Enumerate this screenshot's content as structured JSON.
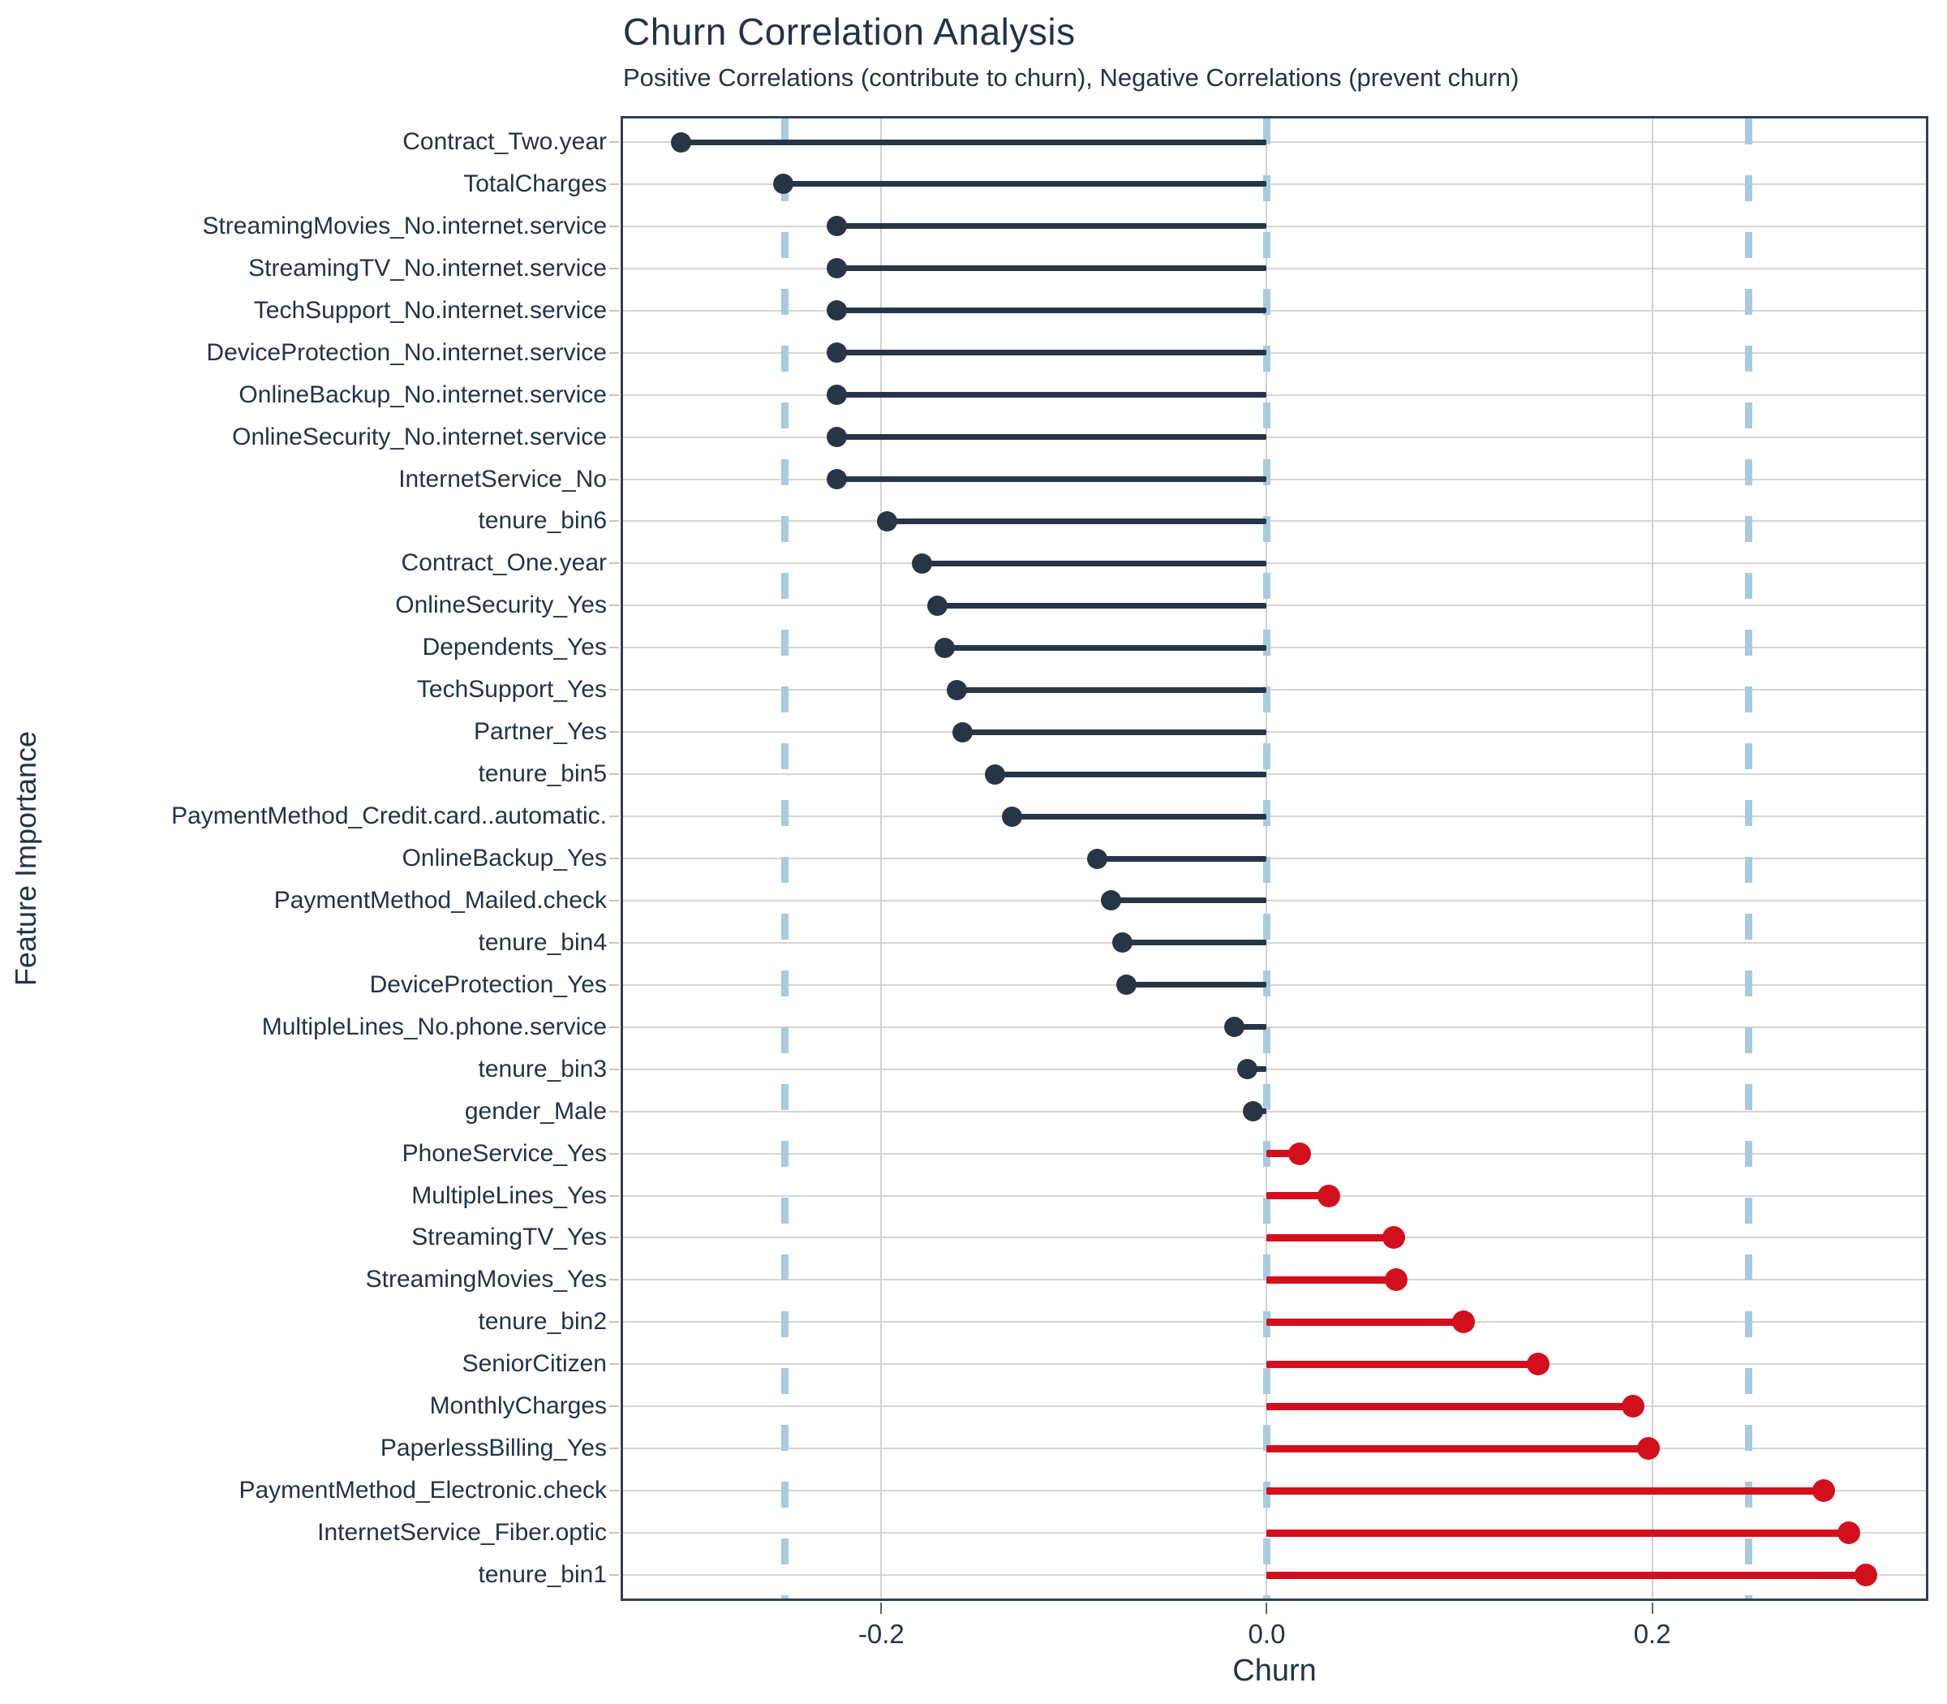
{
  "chart_data": {
    "type": "lollipop",
    "title": "Churn Correlation Analysis",
    "subtitle": "Positive Correlations (contribute to churn), Negative Correlations (prevent churn)",
    "xlabel": "Churn",
    "ylabel": "Feature Importance",
    "xlim": [
      -0.334,
      0.342
    ],
    "grid": true,
    "legend": "none",
    "xticks": [
      {
        "value": -0.2,
        "label": "-0.2"
      },
      {
        "value": 0.0,
        "label": "0.0"
      },
      {
        "value": 0.2,
        "label": "0.2"
      }
    ],
    "threshold_lines": [
      -0.25,
      0.0,
      0.25
    ],
    "colors": {
      "negative": "#263646",
      "positive": "#d30f1e",
      "threshold": "#a8cbe0",
      "grid": "#d6d6d6",
      "axis_text": "#22334a",
      "panel_border": "#2e4156"
    },
    "features": [
      {
        "name": "Contract_Two.year",
        "value": -0.304
      },
      {
        "name": "TotalCharges",
        "value": -0.251
      },
      {
        "name": "StreamingMovies_No.internet.service",
        "value": -0.223
      },
      {
        "name": "StreamingTV_No.internet.service",
        "value": -0.223
      },
      {
        "name": "TechSupport_No.internet.service",
        "value": -0.223
      },
      {
        "name": "DeviceProtection_No.internet.service",
        "value": -0.223
      },
      {
        "name": "OnlineBackup_No.internet.service",
        "value": -0.223
      },
      {
        "name": "OnlineSecurity_No.internet.service",
        "value": -0.223
      },
      {
        "name": "InternetService_No",
        "value": -0.223
      },
      {
        "name": "tenure_bin6",
        "value": -0.197
      },
      {
        "name": "Contract_One.year",
        "value": -0.179
      },
      {
        "name": "OnlineSecurity_Yes",
        "value": -0.171
      },
      {
        "name": "Dependents_Yes",
        "value": -0.167
      },
      {
        "name": "TechSupport_Yes",
        "value": -0.161
      },
      {
        "name": "Partner_Yes",
        "value": -0.158
      },
      {
        "name": "tenure_bin5",
        "value": -0.141
      },
      {
        "name": "PaymentMethod_Credit.card..automatic.",
        "value": -0.132
      },
      {
        "name": "OnlineBackup_Yes",
        "value": -0.088
      },
      {
        "name": "PaymentMethod_Mailed.check",
        "value": -0.081
      },
      {
        "name": "tenure_bin4",
        "value": -0.075
      },
      {
        "name": "DeviceProtection_Yes",
        "value": -0.073
      },
      {
        "name": "MultipleLines_No.phone.service",
        "value": -0.017
      },
      {
        "name": "tenure_bin3",
        "value": -0.01
      },
      {
        "name": "gender_Male",
        "value": -0.007
      },
      {
        "name": "PhoneService_Yes",
        "value": 0.017
      },
      {
        "name": "MultipleLines_Yes",
        "value": 0.032
      },
      {
        "name": "StreamingTV_Yes",
        "value": 0.066
      },
      {
        "name": "StreamingMovies_Yes",
        "value": 0.067
      },
      {
        "name": "tenure_bin2",
        "value": 0.102
      },
      {
        "name": "SeniorCitizen",
        "value": 0.141
      },
      {
        "name": "MonthlyCharges",
        "value": 0.19
      },
      {
        "name": "PaperlessBilling_Yes",
        "value": 0.198
      },
      {
        "name": "PaymentMethod_Electronic.check",
        "value": 0.289
      },
      {
        "name": "InternetService_Fiber.optic",
        "value": 0.302
      },
      {
        "name": "tenure_bin1",
        "value": 0.311
      }
    ]
  }
}
